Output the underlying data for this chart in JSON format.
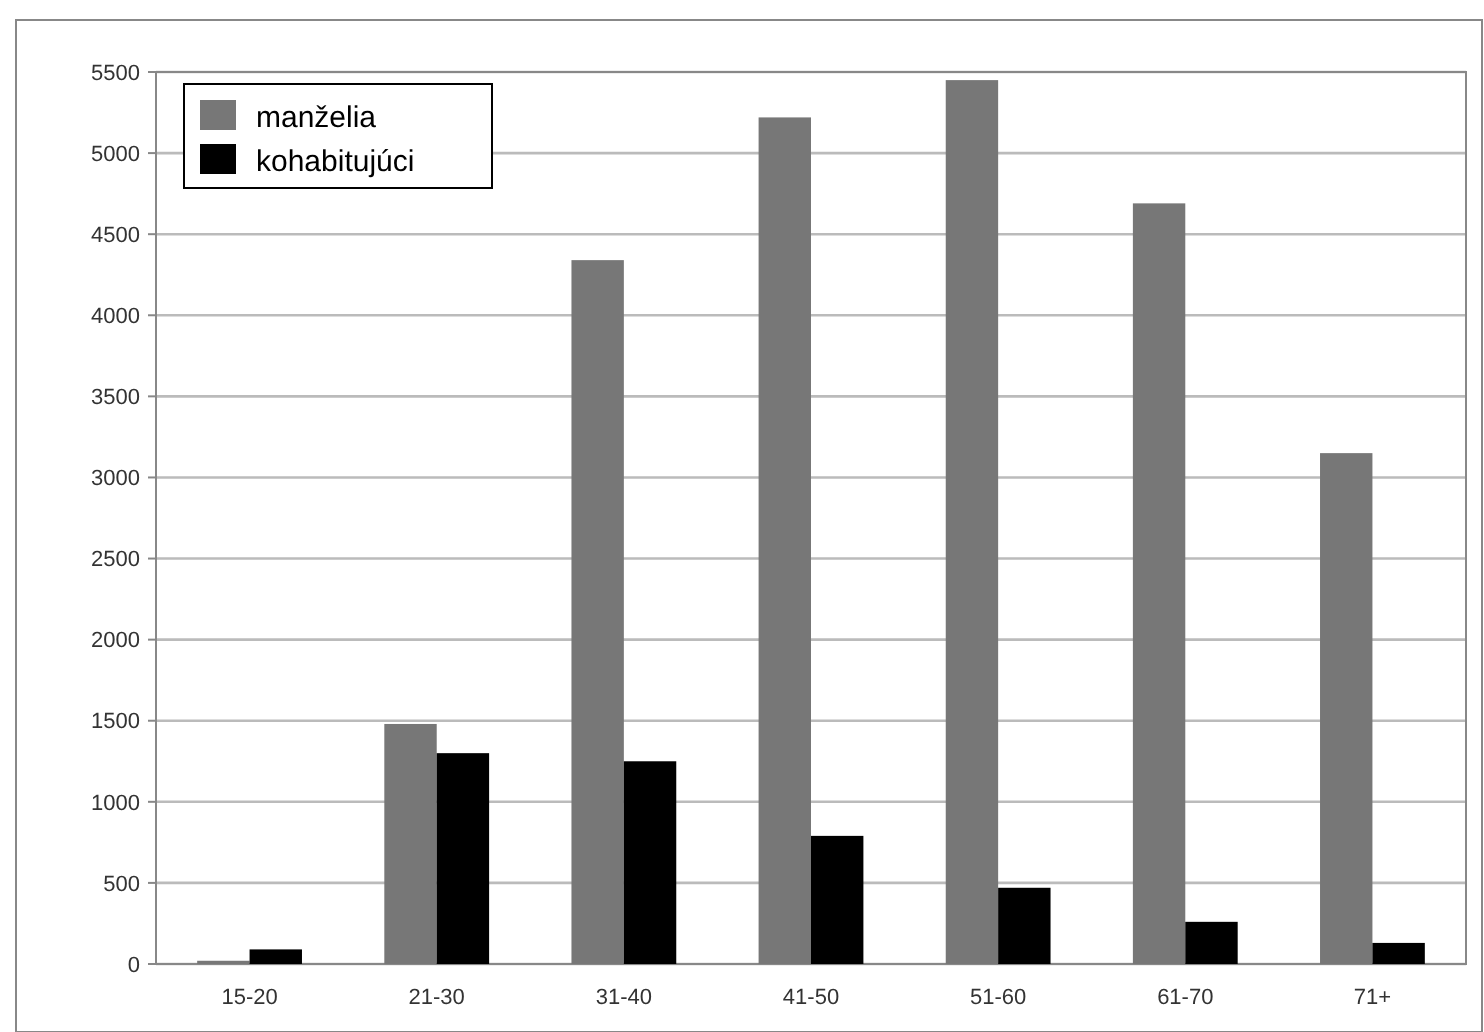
{
  "chart_data": {
    "type": "bar",
    "categories": [
      "15-20",
      "21-30",
      "31-40",
      "41-50",
      "51-60",
      "61-70",
      "71+"
    ],
    "series": [
      {
        "name": "manželia",
        "color": "#777777",
        "values": [
          20,
          1480,
          4340,
          5220,
          5450,
          4690,
          3150
        ]
      },
      {
        "name": "kohabitujúci",
        "color": "#000000",
        "values": [
          90,
          1300,
          1250,
          790,
          470,
          260,
          130
        ]
      }
    ],
    "ylim": [
      0,
      5500
    ],
    "yticks": [
      0,
      500,
      1000,
      1500,
      2000,
      2500,
      3000,
      3500,
      4000,
      4500,
      5000,
      5500
    ],
    "grid": "y",
    "legend": "top left"
  }
}
